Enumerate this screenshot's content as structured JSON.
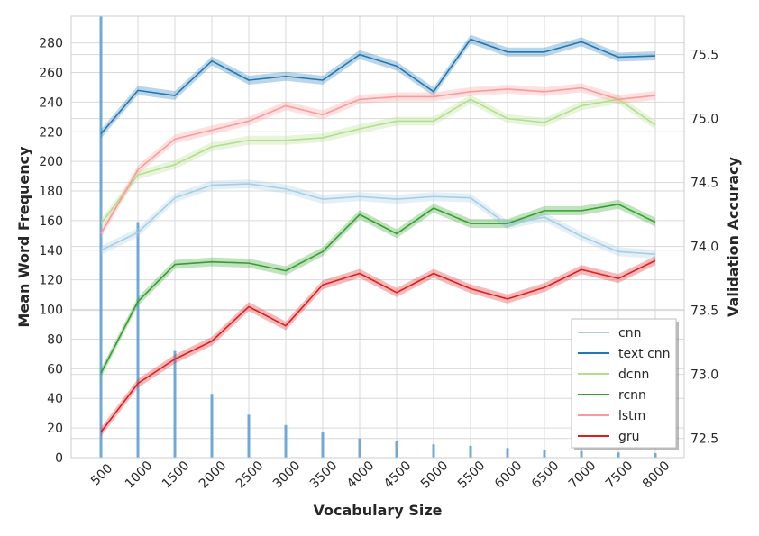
{
  "chart_data": {
    "type": "line",
    "xlabel": "Vocabulary Size",
    "ylabel_left": "Mean Word Frequency",
    "ylabel_right": "Validation Accuracy",
    "categories": [
      "500",
      "1000",
      "1500",
      "2000",
      "2500",
      "3000",
      "3500",
      "4000",
      "4500",
      "5000",
      "5500",
      "6000",
      "6500",
      "7000",
      "7500",
      "8000"
    ],
    "left_ylim": [
      0,
      298
    ],
    "left_ticks": [
      "0",
      "20",
      "40",
      "60",
      "80",
      "100",
      "120",
      "140",
      "160",
      "180",
      "200",
      "220",
      "240",
      "260",
      "280"
    ],
    "right_ylim": [
      72.35,
      75.8
    ],
    "right_ticks": [
      "72.5",
      "73.0",
      "73.5",
      "74.0",
      "74.5",
      "75.0",
      "75.5"
    ],
    "grid": true,
    "legend_position": "lower-right",
    "bars": {
      "name": "Mean Word Frequency",
      "color": "#5b9bd5",
      "values": [
        298,
        159,
        72,
        43,
        29,
        22,
        17,
        13,
        11,
        9,
        8,
        6.5,
        5.5,
        4.5,
        3.5,
        3
      ]
    },
    "series": [
      {
        "name": "cnn",
        "color": "#a6cee3",
        "values": [
          73.97,
          74.11,
          74.38,
          74.48,
          74.49,
          74.45,
          74.37,
          74.39,
          74.37,
          74.39,
          74.38,
          74.17,
          74.23,
          74.08,
          73.96,
          73.94
        ]
      },
      {
        "name": "text cnn",
        "color": "#1f78b4",
        "values": [
          74.88,
          75.22,
          75.18,
          75.45,
          75.3,
          75.33,
          75.3,
          75.5,
          75.41,
          75.21,
          75.62,
          75.52,
          75.52,
          75.6,
          75.48,
          75.49
        ]
      },
      {
        "name": "dcnn",
        "color": "#b2df8a",
        "values": [
          74.18,
          74.56,
          74.64,
          74.78,
          74.83,
          74.83,
          74.85,
          74.92,
          74.98,
          74.98,
          75.15,
          75.0,
          74.97,
          75.1,
          75.15,
          74.95
        ]
      },
      {
        "name": "rcnn",
        "color": "#33a02c",
        "values": [
          73.01,
          73.57,
          73.86,
          73.88,
          73.87,
          73.81,
          73.96,
          74.25,
          74.1,
          74.3,
          74.18,
          74.18,
          74.28,
          74.28,
          74.33,
          74.19
        ]
      },
      {
        "name": "lstm",
        "color": "#fb9a99",
        "values": [
          74.1,
          74.6,
          74.84,
          74.91,
          74.98,
          75.1,
          75.03,
          75.15,
          75.17,
          75.17,
          75.21,
          75.23,
          75.21,
          75.24,
          75.15,
          75.18
        ]
      },
      {
        "name": "gru",
        "color": "#e31a1c",
        "values": [
          72.55,
          72.93,
          73.12,
          73.26,
          73.53,
          73.38,
          73.7,
          73.79,
          73.64,
          73.79,
          73.67,
          73.59,
          73.68,
          73.82,
          73.75,
          73.89
        ]
      }
    ]
  }
}
